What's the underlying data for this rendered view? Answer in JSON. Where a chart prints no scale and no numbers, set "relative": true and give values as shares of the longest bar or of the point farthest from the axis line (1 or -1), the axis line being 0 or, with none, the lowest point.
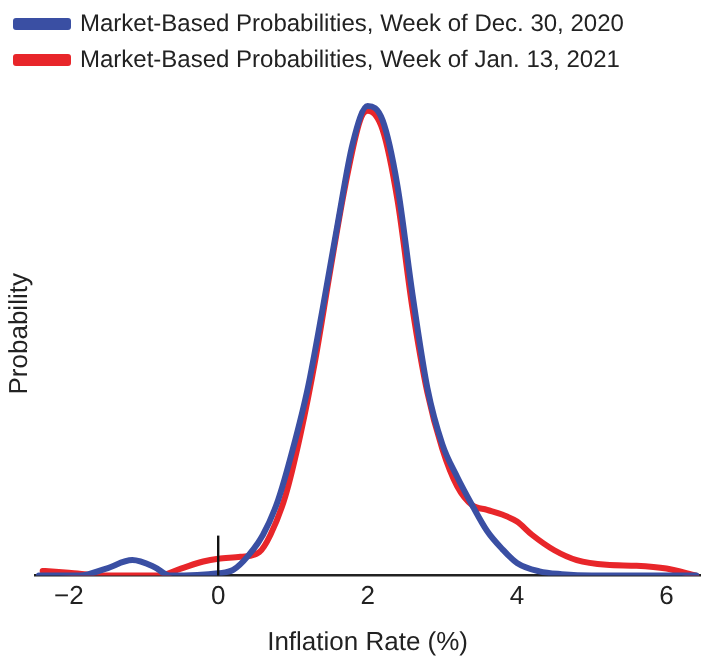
{
  "chart_data": {
    "type": "line",
    "xlabel": "Inflation Rate (%)",
    "ylabel": "Probability",
    "relative": true,
    "xlim": [
      -2.45,
      6.45
    ],
    "xticks": [
      {
        "value": -2,
        "label": "−2"
      },
      0,
      2,
      4,
      6
    ],
    "legend": "top left",
    "grid": false,
    "marker": "none",
    "line_style": "solid",
    "ref_lines": [
      {
        "axis": "x",
        "value": 0,
        "label": null
      }
    ],
    "series": [
      {
        "name": "Market-Based Probabilities, Week of Dec. 30, 2020",
        "color": "#3a4fa3",
        "x": [
          -2.4,
          -1.85,
          -1.5,
          -1.15,
          -0.85,
          -0.65,
          0,
          0.2,
          0.4,
          0.6,
          0.8,
          1.0,
          1.2,
          1.4,
          1.6,
          1.8,
          2.0,
          2.2,
          2.4,
          2.6,
          2.8,
          3.0,
          3.2,
          3.4,
          3.6,
          3.8,
          4.0,
          4.3,
          4.6,
          5.0,
          6.4
        ],
        "values": [
          0,
          0,
          0.015,
          0.033,
          0.018,
          0,
          0.005,
          0.012,
          0.042,
          0.087,
          0.16,
          0.27,
          0.4,
          0.57,
          0.75,
          0.92,
          1,
          0.97,
          0.83,
          0.6,
          0.4,
          0.28,
          0.21,
          0.15,
          0.095,
          0.057,
          0.027,
          0.009,
          0.003,
          0,
          0
        ]
      },
      {
        "name": "Market-Based Probabilities, Week of Jan. 13, 2021",
        "color": "#e8262a",
        "x": [
          -2.35,
          -2.0,
          -1.5,
          -0.8,
          -0.5,
          -0.2,
          0,
          0.3,
          0.55,
          0.7,
          0.9,
          1.1,
          1.3,
          1.5,
          1.7,
          1.9,
          2.0,
          2.2,
          2.4,
          2.6,
          2.8,
          3.0,
          3.2,
          3.4,
          3.6,
          3.8,
          4.0,
          4.2,
          4.5,
          4.8,
          5.2,
          5.6,
          6.0,
          6.4
        ],
        "values": [
          0.01,
          0.006,
          0,
          0,
          0.015,
          0.03,
          0.036,
          0.04,
          0.05,
          0.087,
          0.17,
          0.3,
          0.46,
          0.65,
          0.83,
          0.97,
          0.99,
          0.95,
          0.8,
          0.57,
          0.39,
          0.27,
          0.19,
          0.15,
          0.14,
          0.13,
          0.115,
          0.087,
          0.054,
          0.033,
          0.023,
          0.021,
          0.015,
          0
        ]
      }
    ]
  }
}
